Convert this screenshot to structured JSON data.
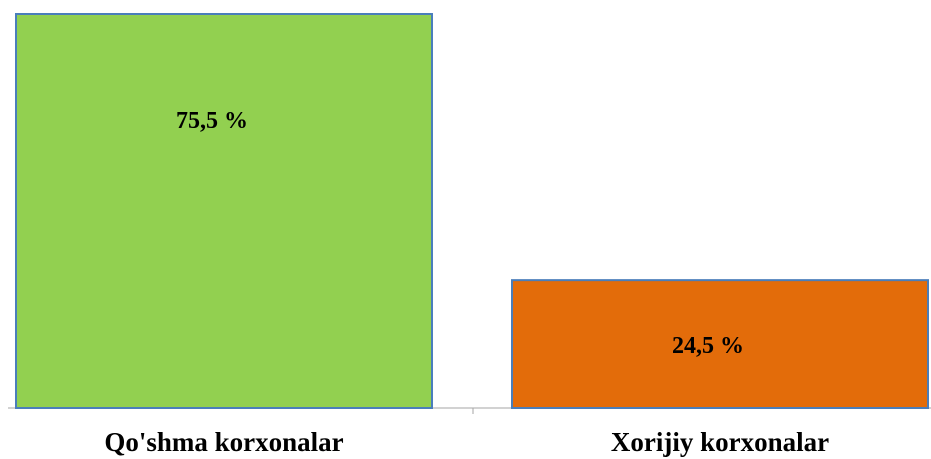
{
  "chart_data": {
    "type": "bar",
    "categories": [
      "Qo'shma korxonalar",
      "Xorijiy korxonalar"
    ],
    "values": [
      75.5,
      24.5
    ],
    "data_labels": [
      "75,5 %",
      "24,5 %"
    ],
    "colors": [
      "#92d050",
      "#e36c0a"
    ],
    "border_color": "#4a7ebb",
    "ylim": [
      0,
      75.5
    ],
    "grid": false,
    "legend": "none",
    "title": "",
    "xlabel": "",
    "ylabel": ""
  }
}
